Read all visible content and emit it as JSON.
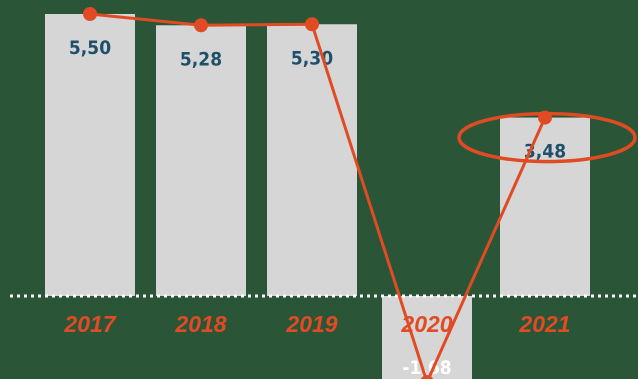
{
  "chart_data": {
    "type": "bar",
    "categories": [
      "2017",
      "2018",
      "2019",
      "2020",
      "2021"
    ],
    "values": [
      5.5,
      5.28,
      5.3,
      -1.68,
      3.48
    ],
    "value_labels": [
      "5,50",
      "5,28",
      "5,30",
      "-1,68",
      "3,48"
    ],
    "overlay": "line connecting bar tops",
    "highlighted_category": "2021",
    "title": "",
    "xlabel": "",
    "ylabel": "",
    "grid": false,
    "legend": "none",
    "colors": {
      "background": "#2a5637",
      "bar": "#d6d6d6",
      "line": "#e14b24",
      "value_text": "#1f4f6a",
      "negative_value_text": "#ffffff",
      "category_text": "#e14b24",
      "baseline": "#ffffff"
    }
  }
}
